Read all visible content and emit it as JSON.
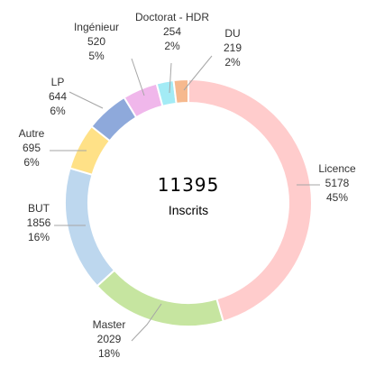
{
  "chart_data": {
    "type": "pie",
    "donut": true,
    "title": "",
    "center": {
      "value": "11395",
      "label": "Inscrits"
    },
    "total": 11395,
    "legend": "none",
    "slices": [
      {
        "name": "Licence",
        "value": 5178,
        "percent": "45%",
        "color": "#FFCCCC"
      },
      {
        "name": "Master",
        "value": 2029,
        "percent": "18%",
        "color": "#C6E5A0"
      },
      {
        "name": "BUT",
        "value": 1856,
        "percent": "16%",
        "color": "#BDD7EE"
      },
      {
        "name": "Autre",
        "value": 695,
        "percent": "6%",
        "color": "#FFE187"
      },
      {
        "name": "LP",
        "value": 644,
        "percent": "6%",
        "color": "#8EA9DB"
      },
      {
        "name": "Ingénieur",
        "value": 520,
        "percent": "5%",
        "color": "#F0B7EB"
      },
      {
        "name": "Doctorat - HDR",
        "value": 254,
        "percent": "2%",
        "color": "#A3EBF5"
      },
      {
        "name": "DU",
        "value": 219,
        "percent": "2%",
        "color": "#F6B98E"
      }
    ]
  }
}
